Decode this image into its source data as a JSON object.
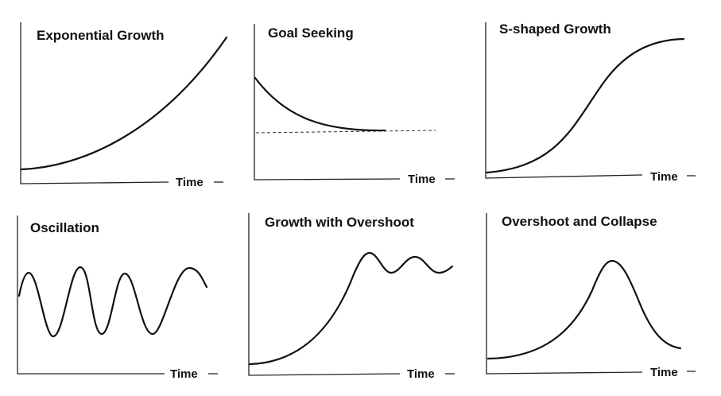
{
  "panels": [
    {
      "title": "Exponential Growth",
      "x_label": "Time",
      "pattern": "exponential"
    },
    {
      "title": "Goal Seeking",
      "x_label": "Time",
      "pattern": "goal-seeking",
      "has_goal_line": true
    },
    {
      "title": "S-shaped Growth",
      "x_label": "Time",
      "pattern": "s-shaped"
    },
    {
      "title": "Oscillation",
      "x_label": "Time",
      "pattern": "oscillation"
    },
    {
      "title": "Growth with Overshoot",
      "x_label": "Time",
      "pattern": "overshoot"
    },
    {
      "title": "Overshoot and Collapse",
      "x_label": "Time",
      "pattern": "collapse"
    }
  ],
  "colors": {
    "ink": "#111111",
    "background": "#ffffff"
  }
}
